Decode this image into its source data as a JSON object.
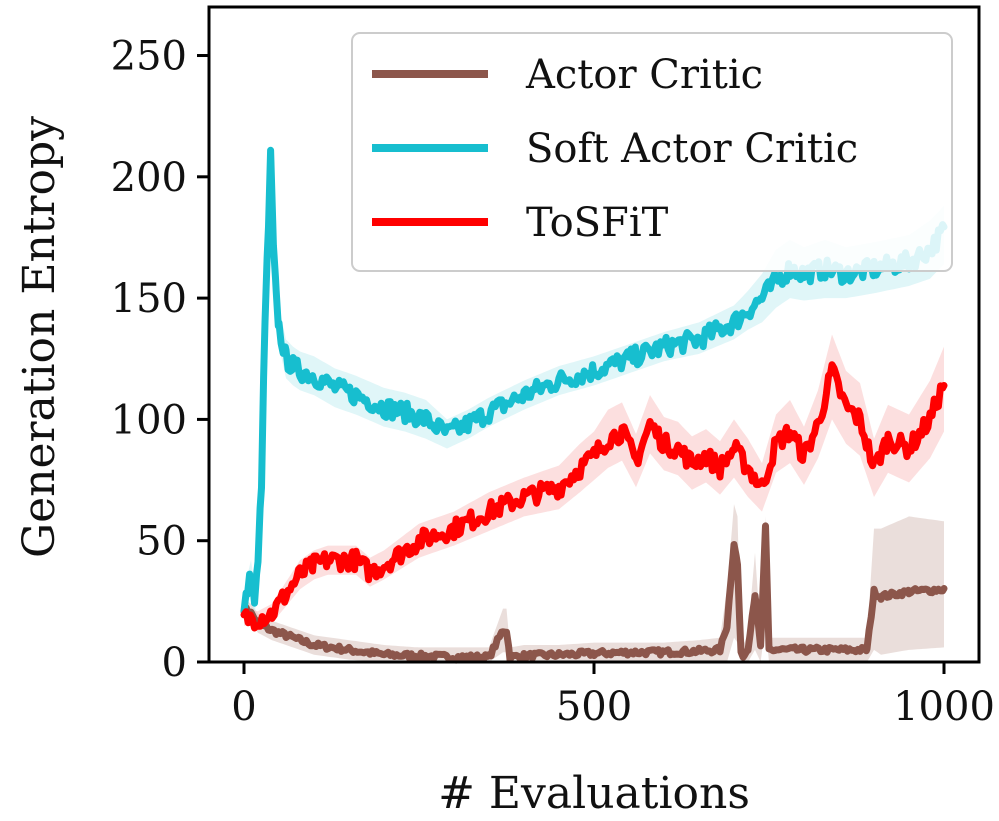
{
  "chart_data": {
    "type": "line",
    "title": "",
    "xlabel": "# Evaluations",
    "ylabel": "Generation Entropy",
    "xlim": [
      -50,
      1050
    ],
    "ylim": [
      0,
      270
    ],
    "xticks": [
      0,
      500,
      1000
    ],
    "yticks": [
      0,
      50,
      100,
      150,
      200,
      250
    ],
    "xtick_labels": [
      "0",
      "500",
      "1000"
    ],
    "ytick_labels": [
      "0",
      "50",
      "100",
      "150",
      "200",
      "250"
    ],
    "grid": false,
    "legend_position": "top-right",
    "series": [
      {
        "name": "Actor Critic",
        "color": "#8c564b",
        "band_color": "#d9c2bd",
        "x": [
          0,
          10,
          20,
          40,
          60,
          80,
          100,
          150,
          200,
          250,
          300,
          350,
          370,
          375,
          380,
          400,
          450,
          500,
          550,
          600,
          650,
          680,
          690,
          700,
          705,
          710,
          715,
          720,
          730,
          738,
          745,
          750,
          760,
          800,
          850,
          890,
          900,
          910,
          950,
          1000
        ],
        "y": [
          22,
          20,
          16,
          13,
          11,
          9,
          7,
          5,
          3,
          2.5,
          2,
          2,
          13,
          13,
          2,
          2.5,
          3,
          3.5,
          4,
          4,
          4.5,
          5,
          15,
          49,
          40,
          3,
          3,
          6,
          28,
          6,
          55,
          5,
          5,
          5,
          5,
          5,
          29,
          27,
          29,
          30
        ],
        "lower": [
          18,
          16,
          12,
          9,
          7,
          5,
          3,
          1,
          0,
          0,
          0,
          0,
          4,
          4,
          0,
          0,
          0,
          0,
          0,
          0,
          0,
          0,
          0,
          10,
          8,
          0,
          0,
          0,
          5,
          0,
          15,
          0,
          0,
          0,
          0,
          0,
          5,
          3,
          5,
          6
        ],
        "upper": [
          26,
          24,
          20,
          17,
          15,
          13,
          11,
          9,
          7,
          6,
          6,
          6,
          22,
          22,
          6,
          7,
          7,
          8,
          8,
          8,
          9,
          10,
          30,
          65,
          60,
          8,
          8,
          12,
          45,
          12,
          60,
          10,
          10,
          10,
          10,
          10,
          55,
          55,
          60,
          58
        ]
      },
      {
        "name": "Soft Actor Critic",
        "color": "#17becf",
        "band_color": "#c7eef3",
        "x": [
          0,
          5,
          10,
          15,
          20,
          25,
          30,
          35,
          38,
          42,
          46,
          50,
          60,
          70,
          80,
          100,
          130,
          160,
          200,
          230,
          260,
          290,
          320,
          350,
          400,
          450,
          500,
          550,
          600,
          650,
          700,
          720,
          740,
          760,
          780,
          800,
          830,
          860,
          900,
          950,
          980,
          1000
        ],
        "y": [
          20,
          30,
          35,
          25,
          40,
          75,
          140,
          180,
          208,
          170,
          150,
          138,
          125,
          122,
          120,
          118,
          113,
          110,
          105,
          103,
          100,
          94,
          98,
          103,
          110,
          116,
          120,
          125,
          130,
          133,
          140,
          145,
          150,
          157,
          162,
          160,
          162,
          160,
          162,
          165,
          170,
          178
        ],
        "lower": [
          16,
          24,
          28,
          18,
          34,
          68,
          130,
          170,
          198,
          160,
          140,
          130,
          117,
          114,
          112,
          110,
          105,
          102,
          97,
          95,
          92,
          88,
          92,
          97,
          104,
          110,
          114,
          119,
          124,
          127,
          133,
          137,
          140,
          146,
          150,
          149,
          150,
          150,
          152,
          155,
          158,
          164
        ],
        "upper": [
          24,
          36,
          42,
          32,
          46,
          82,
          150,
          190,
          212,
          180,
          158,
          146,
          133,
          130,
          128,
          126,
          121,
          118,
          113,
          111,
          108,
          100,
          104,
          109,
          116,
          122,
          126,
          131,
          136,
          140,
          147,
          153,
          160,
          170,
          174,
          171,
          174,
          171,
          173,
          176,
          182,
          188
        ]
      },
      {
        "name": "ToSFiT",
        "color": "#ff0000",
        "band_color": "#f9c4c4",
        "x": [
          0,
          20,
          40,
          60,
          80,
          100,
          120,
          140,
          160,
          180,
          200,
          250,
          300,
          350,
          400,
          450,
          480,
          500,
          520,
          540,
          560,
          580,
          600,
          620,
          640,
          660,
          680,
          700,
          720,
          740,
          760,
          780,
          800,
          820,
          840,
          860,
          880,
          900,
          920,
          950,
          980,
          1000
        ],
        "y": [
          18,
          18,
          20,
          28,
          36,
          40,
          42,
          42,
          42,
          37,
          40,
          50,
          55,
          62,
          68,
          72,
          80,
          85,
          92,
          95,
          83,
          98,
          90,
          88,
          82,
          85,
          80,
          88,
          80,
          72,
          90,
          95,
          85,
          98,
          120,
          105,
          100,
          80,
          92,
          88,
          100,
          115
        ],
        "lower": [
          15,
          15,
          16,
          23,
          30,
          34,
          36,
          36,
          36,
          31,
          34,
          43,
          48,
          54,
          60,
          63,
          70,
          75,
          80,
          83,
          72,
          86,
          79,
          77,
          71,
          74,
          69,
          76,
          68,
          62,
          78,
          82,
          73,
          84,
          100,
          90,
          85,
          68,
          78,
          74,
          84,
          95
        ],
        "upper": [
          21,
          21,
          24,
          33,
          42,
          46,
          48,
          48,
          48,
          43,
          46,
          57,
          62,
          70,
          76,
          81,
          90,
          95,
          104,
          107,
          94,
          110,
          101,
          99,
          93,
          96,
          91,
          100,
          92,
          82,
          102,
          108,
          97,
          112,
          135,
          120,
          115,
          92,
          106,
          102,
          116,
          130
        ]
      }
    ]
  }
}
